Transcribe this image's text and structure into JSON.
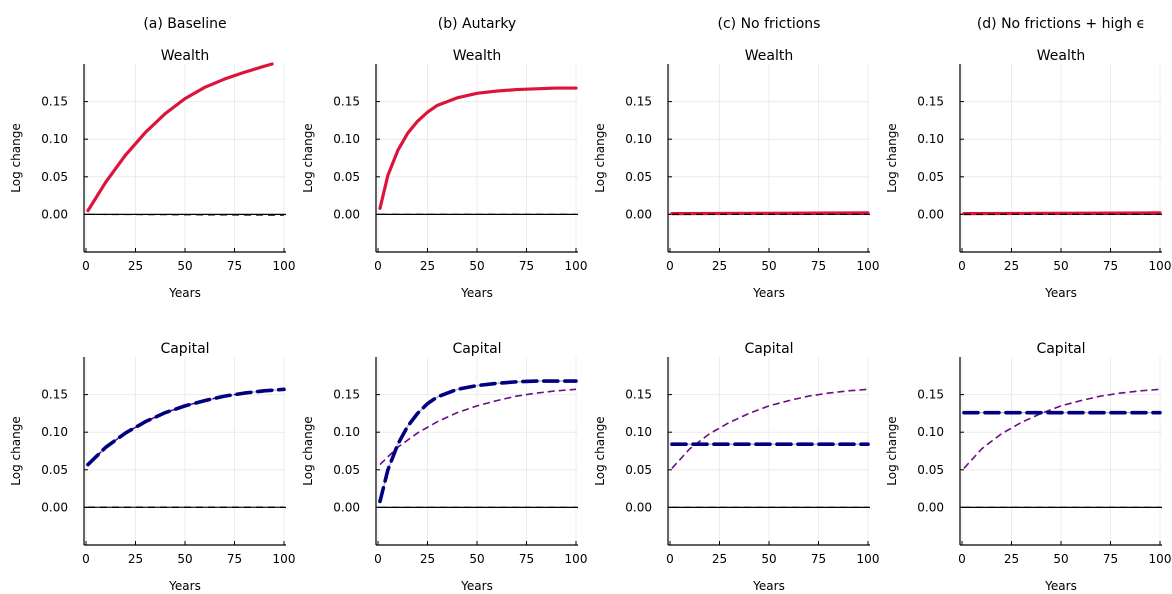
{
  "figure": {
    "columns": [
      {
        "title": "(a) Baseline"
      },
      {
        "title": "(b) Autarky"
      },
      {
        "title": "(c) No frictions"
      },
      {
        "title": "(d) No frictions + high ϵ"
      }
    ],
    "row_titles": [
      "Wealth",
      "Capital"
    ]
  },
  "colors": {
    "red": "#dc143c",
    "navy": "#000080",
    "purple": "#6a0d83",
    "gray": "#b4b4b4",
    "grid": "#ececec",
    "black": "#000000"
  },
  "chart_data": [
    {
      "type": "line",
      "panel": "(a) Baseline",
      "title": "Wealth",
      "xlabel": "Years",
      "ylabel": "Log change",
      "xlim": [
        0,
        100
      ],
      "ylim": [
        -0.05,
        0.2
      ],
      "xticks": [
        "0",
        "25",
        "50",
        "75",
        "100"
      ],
      "yticks": [
        "0.00",
        "0.05",
        "0.10",
        "0.15"
      ],
      "grid": true,
      "series": [
        {
          "style": "red-solid",
          "x": [
            1,
            10,
            20,
            30,
            40,
            50,
            60,
            70,
            80,
            90,
            94
          ],
          "y": [
            0.005,
            0.043,
            0.079,
            0.109,
            0.134,
            0.154,
            0.169,
            0.18,
            0.189,
            0.197,
            0.2
          ]
        },
        {
          "style": "black-dashed",
          "x": [
            1,
            100
          ],
          "y": [
            0.0,
            -0.001
          ]
        }
      ]
    },
    {
      "type": "line",
      "panel": "(b) Autarky",
      "title": "Wealth",
      "xlabel": "Years",
      "ylabel": "Log change",
      "xlim": [
        0,
        100
      ],
      "ylim": [
        -0.05,
        0.2
      ],
      "xticks": [
        "0",
        "25",
        "50",
        "75",
        "100"
      ],
      "yticks": [
        "0.00",
        "0.05",
        "0.10",
        "0.15"
      ],
      "grid": true,
      "series": [
        {
          "style": "red-solid",
          "x": [
            1,
            5,
            10,
            15,
            20,
            25,
            30,
            40,
            50,
            60,
            70,
            80,
            90,
            100
          ],
          "y": [
            0.008,
            0.052,
            0.085,
            0.108,
            0.124,
            0.136,
            0.145,
            0.155,
            0.161,
            0.164,
            0.166,
            0.167,
            0.168,
            0.168
          ]
        },
        {
          "style": "black-dashed",
          "x": [
            1,
            100
          ],
          "y": [
            0.0,
            0.0
          ]
        }
      ]
    },
    {
      "type": "line",
      "panel": "(c) No frictions",
      "title": "Wealth",
      "xlabel": "Years",
      "ylabel": "Log change",
      "xlim": [
        0,
        100
      ],
      "ylim": [
        -0.05,
        0.2
      ],
      "xticks": [
        "0",
        "25",
        "50",
        "75",
        "100"
      ],
      "yticks": [
        "0.00",
        "0.05",
        "0.10",
        "0.15"
      ],
      "grid": true,
      "series": [
        {
          "style": "red-solid",
          "x": [
            1,
            100
          ],
          "y": [
            0.001,
            0.002
          ]
        },
        {
          "style": "black-dashed",
          "x": [
            1,
            100
          ],
          "y": [
            0.0,
            0.0
          ]
        }
      ]
    },
    {
      "type": "line",
      "panel": "(d) No frictions + high ϵ",
      "title": "Wealth",
      "xlabel": "Years",
      "ylabel": "Log change",
      "xlim": [
        0,
        100
      ],
      "ylim": [
        -0.05,
        0.2
      ],
      "xticks": [
        "0",
        "25",
        "50",
        "75",
        "100"
      ],
      "yticks": [
        "0.00",
        "0.05",
        "0.10",
        "0.15"
      ],
      "grid": true,
      "series": [
        {
          "style": "red-solid",
          "x": [
            1,
            100
          ],
          "y": [
            0.001,
            0.002
          ]
        },
        {
          "style": "black-dashed",
          "x": [
            1,
            100
          ],
          "y": [
            0.0,
            0.0
          ]
        }
      ]
    },
    {
      "type": "line",
      "panel": "(a) Baseline",
      "title": "Capital",
      "xlabel": "Years",
      "ylabel": "Log change",
      "xlim": [
        0,
        100
      ],
      "ylim": [
        -0.05,
        0.2
      ],
      "xticks": [
        "0",
        "25",
        "50",
        "75",
        "100"
      ],
      "yticks": [
        "0.00",
        "0.05",
        "0.10",
        "0.15"
      ],
      "grid": true,
      "series": [
        {
          "style": "gray-solid",
          "x": [
            1,
            10,
            20,
            30,
            40,
            50,
            60,
            70,
            80,
            90,
            100
          ],
          "y": [
            0.057,
            0.08,
            0.099,
            0.114,
            0.126,
            0.135,
            0.142,
            0.148,
            0.152,
            0.155,
            0.157
          ]
        },
        {
          "style": "purple-dashed-thin",
          "x": [
            1,
            10,
            20,
            30,
            40,
            50,
            60,
            70,
            80,
            90,
            100
          ],
          "y": [
            0.057,
            0.08,
            0.099,
            0.114,
            0.126,
            0.135,
            0.142,
            0.148,
            0.152,
            0.155,
            0.157
          ]
        },
        {
          "style": "navy-dashed",
          "x": [
            1,
            10,
            20,
            30,
            40,
            50,
            60,
            70,
            80,
            90,
            100
          ],
          "y": [
            0.057,
            0.08,
            0.099,
            0.114,
            0.126,
            0.135,
            0.142,
            0.148,
            0.152,
            0.155,
            0.157
          ]
        },
        {
          "style": "gray-solid",
          "x": [
            1,
            100
          ],
          "y": [
            0.001,
            0.001
          ]
        },
        {
          "style": "black-dashed",
          "x": [
            1,
            100
          ],
          "y": [
            0.0,
            0.0
          ]
        }
      ]
    },
    {
      "type": "line",
      "panel": "(b) Autarky",
      "title": "Capital",
      "xlabel": "Years",
      "ylabel": "Log change",
      "xlim": [
        0,
        100
      ],
      "ylim": [
        -0.05,
        0.2
      ],
      "xticks": [
        "0",
        "25",
        "50",
        "75",
        "100"
      ],
      "yticks": [
        "0.00",
        "0.05",
        "0.10",
        "0.15"
      ],
      "grid": true,
      "series": [
        {
          "style": "gray-solid",
          "x": [
            1,
            5,
            10,
            15,
            20,
            25,
            30,
            40,
            50,
            60,
            70,
            80,
            90,
            100
          ],
          "y": [
            0.008,
            0.05,
            0.084,
            0.108,
            0.125,
            0.138,
            0.147,
            0.157,
            0.162,
            0.165,
            0.167,
            0.168,
            0.168,
            0.168
          ]
        },
        {
          "style": "purple-dashed-thin",
          "x": [
            1,
            10,
            20,
            30,
            40,
            50,
            60,
            70,
            80,
            90,
            100
          ],
          "y": [
            0.057,
            0.08,
            0.099,
            0.114,
            0.126,
            0.135,
            0.142,
            0.148,
            0.152,
            0.155,
            0.157
          ]
        },
        {
          "style": "navy-dashed",
          "x": [
            1,
            5,
            10,
            15,
            20,
            25,
            30,
            40,
            50,
            60,
            70,
            80,
            90,
            100
          ],
          "y": [
            0.008,
            0.05,
            0.084,
            0.108,
            0.125,
            0.138,
            0.147,
            0.157,
            0.162,
            0.165,
            0.167,
            0.168,
            0.168,
            0.168
          ]
        },
        {
          "style": "black-dashed",
          "x": [
            1,
            100
          ],
          "y": [
            0.0,
            0.0
          ]
        }
      ]
    },
    {
      "type": "line",
      "panel": "(c) No frictions",
      "title": "Capital",
      "xlabel": "Years",
      "ylabel": "Log change",
      "xlim": [
        0,
        100
      ],
      "ylim": [
        -0.05,
        0.2
      ],
      "xticks": [
        "0",
        "25",
        "50",
        "75",
        "100"
      ],
      "yticks": [
        "0.00",
        "0.05",
        "0.10",
        "0.15"
      ],
      "grid": true,
      "series": [
        {
          "style": "gray-solid",
          "x": [
            1,
            100
          ],
          "y": [
            0.084,
            0.084
          ]
        },
        {
          "style": "purple-dashed-thin",
          "x": [
            1,
            10,
            20,
            30,
            40,
            50,
            60,
            70,
            80,
            90,
            100
          ],
          "y": [
            0.052,
            0.078,
            0.098,
            0.113,
            0.125,
            0.135,
            0.142,
            0.148,
            0.152,
            0.155,
            0.157
          ]
        },
        {
          "style": "navy-dashed",
          "x": [
            1,
            100
          ],
          "y": [
            0.084,
            0.084
          ]
        },
        {
          "style": "black-dashed",
          "x": [
            1,
            100
          ],
          "y": [
            0.0,
            0.0
          ]
        }
      ]
    },
    {
      "type": "line",
      "panel": "(d) No frictions + high ϵ",
      "title": "Capital",
      "xlabel": "Years",
      "ylabel": "Log change",
      "xlim": [
        0,
        100
      ],
      "ylim": [
        -0.05,
        0.2
      ],
      "xticks": [
        "0",
        "25",
        "50",
        "75",
        "100"
      ],
      "yticks": [
        "0.00",
        "0.05",
        "0.10",
        "0.15"
      ],
      "grid": true,
      "series": [
        {
          "style": "gray-solid",
          "x": [
            1,
            100
          ],
          "y": [
            0.126,
            0.126
          ]
        },
        {
          "style": "purple-dashed-thin",
          "x": [
            1,
            10,
            20,
            30,
            40,
            50,
            60,
            70,
            80,
            90,
            100
          ],
          "y": [
            0.052,
            0.078,
            0.098,
            0.113,
            0.125,
            0.135,
            0.142,
            0.148,
            0.152,
            0.155,
            0.157
          ]
        },
        {
          "style": "navy-dashed",
          "x": [
            1,
            100
          ],
          "y": [
            0.126,
            0.126
          ]
        },
        {
          "style": "black-dashed",
          "x": [
            1,
            100
          ],
          "y": [
            0.0,
            0.0
          ]
        }
      ]
    }
  ]
}
